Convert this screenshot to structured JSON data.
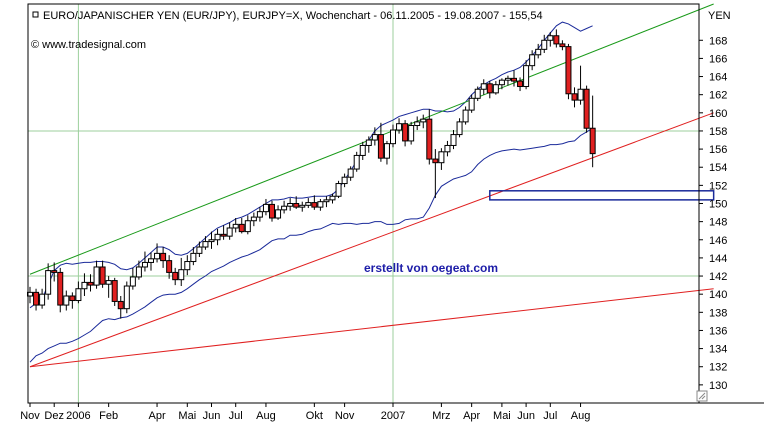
{
  "header": {
    "title": "EURO/JAPANISCHER YEN (EUR/JPY), EURJPY=X, Wochenchart - 06.11.2005 - 19.08.2007 - 155,54",
    "source": "© www.tradesignal.com",
    "currency": "YEN"
  },
  "watermark": "erstellt von oegeat.com",
  "chart_data": {
    "type": "candlestick",
    "ylim": [
      128,
      172
    ],
    "y_ticks": [
      130,
      132,
      134,
      136,
      138,
      140,
      142,
      144,
      146,
      148,
      150,
      152,
      154,
      156,
      158,
      160,
      162,
      164,
      166,
      168
    ],
    "x_tick_labels": [
      "Nov",
      "Dez",
      "2006",
      "Feb",
      "Apr",
      "Mai",
      "Jun",
      "Jul",
      "Aug",
      "Okt",
      "Nov",
      "2007",
      "Mrz",
      "Apr",
      "Mai",
      "Jun",
      "Jul",
      "Aug"
    ],
    "x_tick_index": [
      0,
      4,
      8,
      13,
      21,
      26,
      30,
      34,
      39,
      47,
      52,
      60,
      68,
      73,
      78,
      82,
      86,
      91
    ],
    "colors": {
      "up": "#ffffff",
      "down": "#e02020",
      "upper_channel": "#1a9a1a",
      "lower_channel": "#e02020",
      "bands": "#1a2a9a",
      "support": "#1a2a9a"
    },
    "candles": [
      [
        139.8,
        140.8,
        139.0,
        140.2
      ],
      [
        140.2,
        140.6,
        138.2,
        138.8
      ],
      [
        138.8,
        140.6,
        138.4,
        140.0
      ],
      [
        140.0,
        143.4,
        139.4,
        142.6
      ],
      [
        142.6,
        143.5,
        141.4,
        142.4
      ],
      [
        142.4,
        142.9,
        138.0,
        138.8
      ],
      [
        138.8,
        140.4,
        138.2,
        139.8
      ],
      [
        139.8,
        140.2,
        138.4,
        139.3
      ],
      [
        139.3,
        141.4,
        139.0,
        140.6
      ],
      [
        140.6,
        142.3,
        139.8,
        141.3
      ],
      [
        141.3,
        142.2,
        140.3,
        141.0
      ],
      [
        141.0,
        143.7,
        140.6,
        143.0
      ],
      [
        143.0,
        143.7,
        140.7,
        141.1
      ],
      [
        141.1,
        142.0,
        139.6,
        141.5
      ],
      [
        141.5,
        141.8,
        138.7,
        139.2
      ],
      [
        139.2,
        139.8,
        137.3,
        138.4
      ],
      [
        138.4,
        141.4,
        137.9,
        140.9
      ],
      [
        140.9,
        142.9,
        140.5,
        141.9
      ],
      [
        141.9,
        143.7,
        141.6,
        143.0
      ],
      [
        143.0,
        144.7,
        142.5,
        143.5
      ],
      [
        143.5,
        144.6,
        142.6,
        143.9
      ],
      [
        143.9,
        145.6,
        143.5,
        144.5
      ],
      [
        144.5,
        145.2,
        142.9,
        143.7
      ],
      [
        143.7,
        144.3,
        141.7,
        142.4
      ],
      [
        142.4,
        142.9,
        141.0,
        141.6
      ],
      [
        141.6,
        144.0,
        140.9,
        142.7
      ],
      [
        142.7,
        144.3,
        142.1,
        143.6
      ],
      [
        143.6,
        145.2,
        143.2,
        144.5
      ],
      [
        144.5,
        145.8,
        144.1,
        145.2
      ],
      [
        145.2,
        146.4,
        144.9,
        145.8
      ],
      [
        145.8,
        146.9,
        145.0,
        146.0
      ],
      [
        146.0,
        147.2,
        145.4,
        146.6
      ],
      [
        146.6,
        147.6,
        146.0,
        146.4
      ],
      [
        146.4,
        147.9,
        146.0,
        147.3
      ],
      [
        147.3,
        148.4,
        146.8,
        147.7
      ],
      [
        147.7,
        148.4,
        146.7,
        146.9
      ],
      [
        146.9,
        148.7,
        146.6,
        148.1
      ],
      [
        148.1,
        149.0,
        147.5,
        148.5
      ],
      [
        148.5,
        149.6,
        148.0,
        149.1
      ],
      [
        149.1,
        150.5,
        148.7,
        149.9
      ],
      [
        149.9,
        150.3,
        148.0,
        148.4
      ],
      [
        148.4,
        149.8,
        148.2,
        149.3
      ],
      [
        149.3,
        150.3,
        148.9,
        149.7
      ],
      [
        149.7,
        150.6,
        149.2,
        150.0
      ],
      [
        150.0,
        150.8,
        149.4,
        149.6
      ],
      [
        149.6,
        150.2,
        149.1,
        149.8
      ],
      [
        149.8,
        150.6,
        149.5,
        150.1
      ],
      [
        150.1,
        150.9,
        149.3,
        149.6
      ],
      [
        149.6,
        150.5,
        149.2,
        150.2
      ],
      [
        150.2,
        150.8,
        149.6,
        150.4
      ],
      [
        150.4,
        151.1,
        150.0,
        150.8
      ],
      [
        150.8,
        152.5,
        150.6,
        152.2
      ],
      [
        152.2,
        153.3,
        151.8,
        152.9
      ],
      [
        152.9,
        154.1,
        152.5,
        153.8
      ],
      [
        153.8,
        155.7,
        153.5,
        155.3
      ],
      [
        155.3,
        156.8,
        154.8,
        156.4
      ],
      [
        156.4,
        157.4,
        155.6,
        157.0
      ],
      [
        157.0,
        158.4,
        156.4,
        157.6
      ],
      [
        157.6,
        158.9,
        154.6,
        155.0
      ],
      [
        155.0,
        156.9,
        154.3,
        156.6
      ],
      [
        156.6,
        158.7,
        156.2,
        158.1
      ],
      [
        158.1,
        159.4,
        157.7,
        158.8
      ],
      [
        158.8,
        159.2,
        156.3,
        156.9
      ],
      [
        156.9,
        159.0,
        156.5,
        158.6
      ],
      [
        158.6,
        159.6,
        158.1,
        159.0
      ],
      [
        159.0,
        159.8,
        158.3,
        159.3
      ],
      [
        159.3,
        160.4,
        154.3,
        154.9
      ],
      [
        154.9,
        156.0,
        150.6,
        154.5
      ],
      [
        154.5,
        156.1,
        153.7,
        155.7
      ],
      [
        155.7,
        156.9,
        155.2,
        156.4
      ],
      [
        156.4,
        158.1,
        156.0,
        157.6
      ],
      [
        157.6,
        159.4,
        157.3,
        159.0
      ],
      [
        159.0,
        160.7,
        158.7,
        160.3
      ],
      [
        160.3,
        162.0,
        160.0,
        161.6
      ],
      [
        161.6,
        162.9,
        161.3,
        162.6
      ],
      [
        162.6,
        163.7,
        162.0,
        163.2
      ],
      [
        163.2,
        163.5,
        161.6,
        162.2
      ],
      [
        162.2,
        163.5,
        162.0,
        163.1
      ],
      [
        163.1,
        163.8,
        162.6,
        163.6
      ],
      [
        163.6,
        164.1,
        163.0,
        163.8
      ],
      [
        163.8,
        164.7,
        162.9,
        163.5
      ],
      [
        163.5,
        163.9,
        162.4,
        162.9
      ],
      [
        162.9,
        165.8,
        162.6,
        165.2
      ],
      [
        165.2,
        166.9,
        164.7,
        166.4
      ],
      [
        166.4,
        167.6,
        166.0,
        167.0
      ],
      [
        167.0,
        168.6,
        166.6,
        168.0
      ],
      [
        168.0,
        168.9,
        167.3,
        168.5
      ],
      [
        168.5,
        169.2,
        167.2,
        167.6
      ],
      [
        167.6,
        168.0,
        166.9,
        167.3
      ],
      [
        167.3,
        167.6,
        161.5,
        162.1
      ],
      [
        162.1,
        162.8,
        160.6,
        161.4
      ],
      [
        161.4,
        165.2,
        160.9,
        162.6
      ],
      [
        162.6,
        163.0,
        157.8,
        158.3
      ],
      [
        158.3,
        161.9,
        154.0,
        155.5
      ]
    ],
    "upper_band": [
      138.5,
      139.0,
      139.5,
      141.0,
      142.6,
      143.2,
      143.4,
      143.3,
      143.4,
      143.5,
      143.5,
      143.6,
      143.6,
      143.5,
      143.3,
      142.8,
      142.7,
      142.9,
      143.4,
      144.0,
      144.6,
      145.2,
      145.2,
      144.9,
      144.4,
      144.3,
      144.5,
      145.0,
      145.6,
      146.2,
      146.8,
      147.3,
      147.6,
      147.9,
      148.3,
      148.5,
      148.8,
      149.2,
      149.6,
      150.0,
      150.4,
      150.4,
      150.5,
      150.7,
      150.6,
      150.6,
      150.7,
      150.8,
      150.8,
      150.8,
      151.0,
      151.6,
      152.6,
      153.6,
      154.7,
      155.9,
      157.0,
      158.0,
      158.6,
      158.9,
      159.2,
      159.6,
      159.8,
      160.0,
      160.2,
      160.4,
      160.4,
      160.2,
      160.2,
      160.1,
      160.2,
      160.6,
      161.2,
      162.0,
      162.6,
      163.1,
      163.5,
      163.8,
      164.2,
      164.5,
      164.7,
      165.0,
      165.6,
      166.3,
      167.1,
      168.0,
      168.8,
      169.6,
      170.0,
      169.8,
      169.4,
      169.0,
      169.3,
      169.6
    ],
    "lower_band": [
      132.5,
      133.2,
      133.5,
      134.0,
      134.3,
      134.6,
      134.6,
      134.8,
      135.1,
      135.5,
      135.9,
      136.5,
      137.1,
      137.3,
      137.2,
      137.4,
      137.5,
      137.8,
      138.2,
      138.6,
      139.1,
      139.6,
      139.9,
      140.0,
      140.0,
      140.2,
      140.6,
      141.1,
      141.6,
      142.0,
      142.5,
      142.8,
      143.1,
      143.5,
      143.8,
      144.1,
      144.3,
      144.6,
      144.9,
      145.4,
      145.9,
      146.1,
      146.1,
      146.5,
      146.5,
      146.6,
      146.9,
      147.1,
      147.2,
      147.5,
      147.8,
      147.7,
      147.8,
      147.8,
      147.7,
      147.8,
      147.8,
      148.0,
      148.0,
      147.7,
      147.7,
      147.8,
      148.2,
      148.3,
      148.3,
      148.5,
      149.5,
      150.9,
      151.9,
      152.3,
      152.7,
      152.9,
      153.1,
      153.5,
      154.3,
      154.9,
      155.3,
      155.6,
      155.8,
      155.9,
      156.0,
      155.9,
      156.0,
      156.1,
      156.2,
      156.3,
      156.5,
      156.5,
      156.6,
      156.8,
      156.9,
      157.5,
      157.9,
      158.3
    ],
    "upper_channel": {
      "from": [
        0,
        142.2
      ],
      "to": [
        113,
        172.0
      ]
    },
    "lower_channel": {
      "from": [
        0,
        132.0
      ],
      "to": [
        113,
        160.0
      ]
    },
    "long_support": {
      "from": [
        0,
        132.0
      ],
      "to": [
        113,
        140.6
      ]
    },
    "horizontal_level": {
      "from_index": 76,
      "to_index": 113,
      "y_top": 151.4,
      "y_bottom": 150.4
    }
  }
}
